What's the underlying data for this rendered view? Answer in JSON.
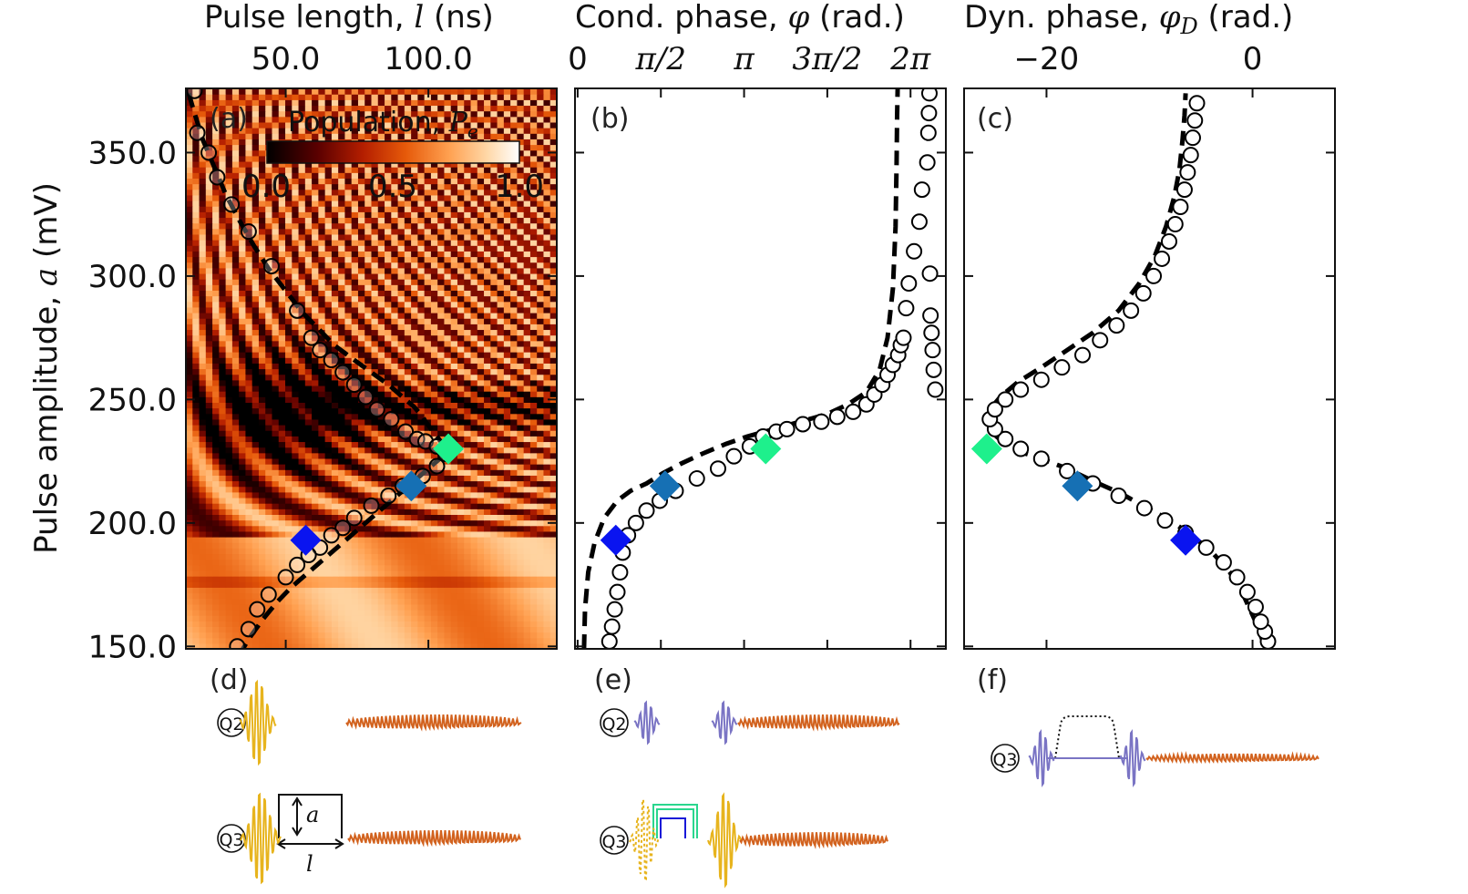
{
  "figure": {
    "top_titles": [
      {
        "text": "Pulse length, ",
        "sym": "l",
        "unit": " (ns)"
      },
      {
        "text": "Cond. phase, ",
        "sym": "φ",
        "unit": " (rad.)"
      },
      {
        "text": "Dyn. phase, ",
        "sym": "φ",
        "sub": "D",
        "unit": " (rad.)"
      }
    ],
    "ylabel": {
      "text": "Pulse amplitude, ",
      "sym": "a",
      "unit": " (mV)"
    },
    "panel_labels": [
      "(a)",
      "(b)",
      "(c)",
      "(d)",
      "(e)",
      "(f)"
    ],
    "colorbar": {
      "label": "Population, ",
      "sym": "P",
      "sub": "e",
      "ticks": [
        "0.0",
        "0.5",
        "1.0"
      ]
    },
    "qubit_labels": {
      "d_top": "Q2",
      "d_bottom": "Q3",
      "e_top": "Q2",
      "e_bottom": "Q3",
      "f": "Q3"
    },
    "schematic_symbols": {
      "amp": "a",
      "len": "l"
    },
    "colors": {
      "marker_dark_blue": "#0a14f0",
      "marker_mid_blue": "#1670b4",
      "marker_green": "#1ef08c",
      "drive_gold": "#e7b41e",
      "readout_orange": "#d2621e",
      "pulse_purple": "#7a74c4",
      "flux_green": "#2ad68e",
      "flux_blue": "#1818d8"
    }
  },
  "chart_data": [
    {
      "panel": "a",
      "type": "heatmap",
      "x_axis": {
        "label": "Pulse length, l (ns)",
        "ticks": [
          50,
          100
        ],
        "tick_labels": [
          "50.0",
          "100.0"
        ],
        "position": "top",
        "range": [
          15,
          145
        ]
      },
      "y_axis": {
        "label": "Pulse amplitude, a (mV)",
        "ticks": [
          150,
          200,
          250,
          300,
          350
        ],
        "tick_labels": [
          "150.0",
          "200.0",
          "250.0",
          "300.0",
          "350.0"
        ],
        "range": [
          149,
          376
        ]
      },
      "colorbar": {
        "label": "Population, P_e",
        "range": [
          0,
          1
        ],
        "colormap": "gist_heat"
      },
      "theory_dashed": {
        "x": [
          16,
          18,
          21,
          25,
          29,
          34,
          39,
          44,
          50,
          56,
          62,
          67,
          74,
          80,
          86,
          91,
          95,
          98,
          99,
          101,
          103,
          105,
          106,
          105,
          101,
          96,
          91,
          86,
          81,
          77,
          73,
          69,
          65,
          61,
          57,
          52,
          47,
          42,
          37,
          34
        ],
        "y": [
          374,
          366,
          355,
          344,
          333,
          322,
          312,
          303,
          294,
          285,
          278,
          272,
          266,
          261,
          256,
          251,
          247,
          243,
          241,
          238,
          235,
          232,
          230,
          227,
          223,
          218,
          213,
          208,
          203,
          199,
          195,
          191,
          187,
          183,
          179,
          174,
          168,
          161,
          153,
          147
        ]
      },
      "measured_x": [
        18,
        19,
        23,
        26,
        31,
        37,
        45,
        54,
        59,
        62,
        66,
        70,
        74,
        78,
        82,
        87,
        92,
        96,
        99,
        103,
        106,
        103,
        98,
        91,
        86,
        80,
        74,
        70,
        66,
        62,
        58,
        54,
        50,
        44,
        40,
        37,
        33
      ],
      "measured_y": [
        375,
        358,
        350,
        340,
        329,
        318,
        304,
        286,
        275,
        270,
        266,
        261,
        256,
        251,
        246,
        242,
        237,
        234,
        233,
        231,
        228,
        223,
        219,
        215,
        211,
        207,
        202,
        198,
        195,
        190,
        187,
        183,
        178,
        171,
        165,
        157,
        150
      ],
      "highlighted": [
        {
          "x": 57,
          "y": 193,
          "color": "#0a14f0"
        },
        {
          "x": 94,
          "y": 215,
          "color": "#1670b4"
        },
        {
          "x": 107,
          "y": 230,
          "color": "#1ef08c"
        }
      ]
    },
    {
      "panel": "b",
      "type": "scatter",
      "x_axis": {
        "label": "Cond. phase, φ (rad.)",
        "ticks": [
          0,
          1.5708,
          3.1416,
          4.7124,
          6.2832
        ],
        "tick_labels": [
          "0",
          "π/2",
          "π",
          "3π/2",
          "2π"
        ],
        "position": "top",
        "range": [
          -0.05,
          6.95
        ]
      },
      "y_axis": {
        "range": [
          149,
          376
        ],
        "ticks": [
          150,
          200,
          250,
          300,
          350
        ]
      },
      "theory_dashed": {
        "x": [
          0.12,
          0.14,
          0.2,
          0.32,
          0.5,
          0.75,
          1.0,
          1.3,
          1.6,
          1.95,
          2.35,
          2.8,
          3.2,
          3.7,
          4.2,
          4.7,
          5.1,
          5.45,
          5.7,
          5.85,
          5.95,
          6.0,
          6.02,
          6.03,
          6.04
        ],
        "y": [
          149,
          165,
          180,
          192,
          202,
          209,
          213,
          216,
          220,
          224,
          228,
          232,
          235,
          238,
          241,
          244,
          248,
          253,
          262,
          275,
          295,
          320,
          345,
          365,
          376
        ]
      },
      "measured_x": [
        0.6,
        0.65,
        0.7,
        0.75,
        0.8,
        0.85,
        0.95,
        1.1,
        1.3,
        1.55,
        1.85,
        2.25,
        2.65,
        2.95,
        3.25,
        3.5,
        3.75,
        3.95,
        4.25,
        4.6,
        4.9,
        5.2,
        5.45,
        5.6,
        5.75,
        5.85,
        5.95,
        6.05,
        6.1,
        6.15,
        6.2,
        6.25,
        6.35,
        6.45,
        6.5,
        6.6,
        6.62,
        6.63,
        6.64,
        6.65,
        6.66,
        6.68,
        6.7,
        6.72,
        6.75
      ],
      "measured_y": [
        152,
        158,
        165,
        172,
        180,
        188,
        195,
        200,
        205,
        209,
        213,
        218,
        222,
        227,
        231,
        235,
        237,
        238,
        240,
        241,
        243,
        245,
        248,
        252,
        256,
        260,
        264,
        268,
        272,
        275,
        287,
        297,
        310,
        322,
        335,
        346,
        358,
        366,
        374,
        301,
        284,
        277,
        270,
        262,
        254
      ],
      "highlighted": [
        {
          "x": 0.72,
          "y": 193,
          "color": "#0a14f0"
        },
        {
          "x": 1.65,
          "y": 215,
          "color": "#1670b4"
        },
        {
          "x": 3.55,
          "y": 230,
          "color": "#1ef08c"
        }
      ]
    },
    {
      "panel": "c",
      "type": "scatter",
      "x_axis": {
        "label": "Dyn. phase, φ_D (rad.)",
        "ticks": [
          -20,
          0
        ],
        "tick_labels": [
          "−20",
          "0"
        ],
        "position": "top",
        "range": [
          -28,
          8
        ]
      },
      "y_axis": {
        "range": [
          149,
          376
        ],
        "ticks": [
          150,
          200,
          250,
          300,
          350
        ]
      },
      "theory_dashed": {
        "x": [
          1.2,
          0.3,
          -0.8,
          -2.2,
          -3.9,
          -5.9,
          -8.0,
          -10.2,
          -12.8,
          -15.5,
          -18.0,
          -20.5,
          -22.7,
          -24.3,
          -25.4,
          -25.8,
          -25.5,
          -24.5,
          -22.8,
          -20.5,
          -18.0,
          -15.5,
          -13.0,
          -11.0,
          -9.5,
          -8.4,
          -7.6,
          -7.1,
          -6.8,
          -6.6,
          -6.5
        ],
        "y": [
          150,
          160,
          170,
          180,
          188,
          195,
          201,
          206,
          212,
          217,
          222,
          226,
          229,
          233,
          237,
          242,
          246,
          251,
          257,
          263,
          270,
          277,
          286,
          297,
          308,
          320,
          332,
          343,
          355,
          365,
          374
        ]
      },
      "measured_x": [
        1.5,
        1.2,
        0.8,
        0.3,
        -0.5,
        -1.5,
        -2.8,
        -4.5,
        -6.5,
        -8.5,
        -10.5,
        -13.0,
        -15.5,
        -18.0,
        -20.5,
        -22.5,
        -24.0,
        -25.0,
        -25.5,
        -25.0,
        -24.0,
        -22.5,
        -20.5,
        -18.5,
        -16.5,
        -14.8,
        -13.2,
        -11.8,
        -10.6,
        -9.6,
        -8.8,
        -8.1,
        -7.5,
        -7.0,
        -6.6,
        -6.3,
        -6.0,
        -5.8,
        -5.6,
        -5.4
      ],
      "measured_y": [
        152,
        156,
        160,
        166,
        172,
        178,
        184,
        190,
        196,
        201,
        206,
        211,
        216,
        221,
        226,
        230,
        234,
        238,
        242,
        246,
        250,
        254,
        258,
        263,
        268,
        274,
        280,
        286,
        293,
        300,
        307,
        314,
        321,
        328,
        335,
        342,
        349,
        356,
        363,
        370
      ],
      "highlighted": [
        {
          "x": -6.5,
          "y": 193,
          "color": "#0a14f0"
        },
        {
          "x": -17.0,
          "y": 215,
          "color": "#1670b4"
        },
        {
          "x": -25.8,
          "y": 230,
          "color": "#1ef08c"
        }
      ]
    }
  ]
}
